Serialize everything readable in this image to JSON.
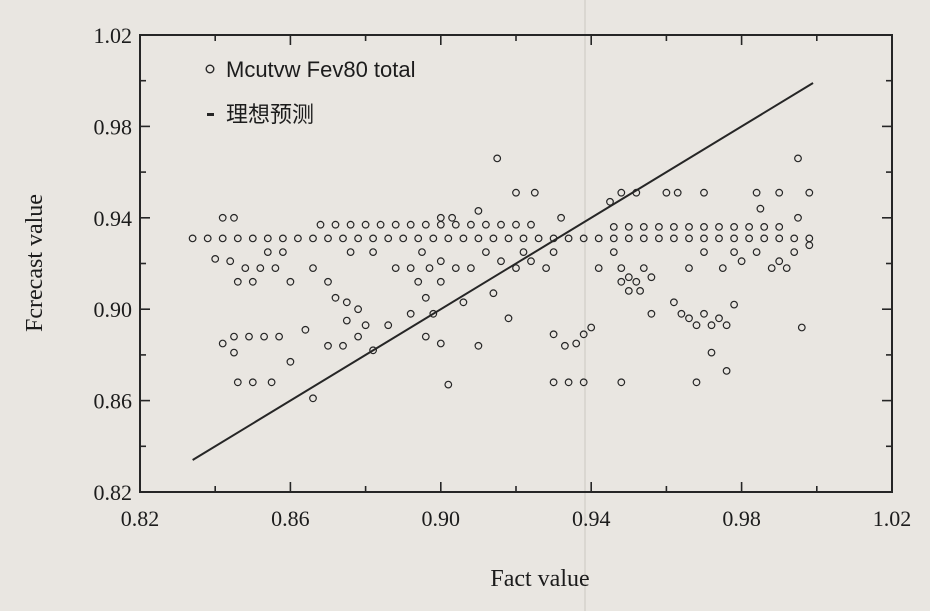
{
  "chart_data": {
    "type": "scatter",
    "xlabel": "Fact value",
    "ylabel": "Fcrecast value",
    "xlim": [
      0.82,
      1.02
    ],
    "ylim": [
      0.82,
      1.02
    ],
    "x_ticks": [
      "0.82",
      "0.86",
      "0.90",
      "0.94",
      "0.98",
      "1.02"
    ],
    "y_ticks": [
      "0.82",
      "0.86",
      "0.90",
      "0.94",
      "0.98",
      "1.02"
    ],
    "legend_position": "top-left",
    "grid": false,
    "colors": {
      "ink": "#262626",
      "background": "#e9e6e1"
    },
    "series": [
      {
        "name": "Mcutvw Fev80 total",
        "marker": "open-circle",
        "points": [
          [
            0.834,
            0.931
          ],
          [
            0.838,
            0.931
          ],
          [
            0.842,
            0.931
          ],
          [
            0.846,
            0.931
          ],
          [
            0.85,
            0.931
          ],
          [
            0.854,
            0.931
          ],
          [
            0.858,
            0.931
          ],
          [
            0.862,
            0.931
          ],
          [
            0.866,
            0.931
          ],
          [
            0.87,
            0.931
          ],
          [
            0.874,
            0.931
          ],
          [
            0.878,
            0.931
          ],
          [
            0.882,
            0.931
          ],
          [
            0.886,
            0.931
          ],
          [
            0.89,
            0.931
          ],
          [
            0.894,
            0.931
          ],
          [
            0.898,
            0.931
          ],
          [
            0.902,
            0.931
          ],
          [
            0.906,
            0.931
          ],
          [
            0.91,
            0.931
          ],
          [
            0.914,
            0.931
          ],
          [
            0.918,
            0.931
          ],
          [
            0.922,
            0.931
          ],
          [
            0.926,
            0.931
          ],
          [
            0.93,
            0.931
          ],
          [
            0.934,
            0.931
          ],
          [
            0.938,
            0.931
          ],
          [
            0.942,
            0.931
          ],
          [
            0.946,
            0.931
          ],
          [
            0.95,
            0.931
          ],
          [
            0.954,
            0.931
          ],
          [
            0.958,
            0.931
          ],
          [
            0.962,
            0.931
          ],
          [
            0.966,
            0.931
          ],
          [
            0.97,
            0.931
          ],
          [
            0.974,
            0.931
          ],
          [
            0.978,
            0.931
          ],
          [
            0.982,
            0.931
          ],
          [
            0.986,
            0.931
          ],
          [
            0.99,
            0.931
          ],
          [
            0.994,
            0.931
          ],
          [
            0.998,
            0.931
          ],
          [
            0.868,
            0.937
          ],
          [
            0.872,
            0.937
          ],
          [
            0.876,
            0.937
          ],
          [
            0.88,
            0.937
          ],
          [
            0.884,
            0.937
          ],
          [
            0.888,
            0.937
          ],
          [
            0.892,
            0.937
          ],
          [
            0.896,
            0.937
          ],
          [
            0.9,
            0.937
          ],
          [
            0.904,
            0.937
          ],
          [
            0.908,
            0.937
          ],
          [
            0.912,
            0.937
          ],
          [
            0.916,
            0.937
          ],
          [
            0.92,
            0.937
          ],
          [
            0.924,
            0.937
          ],
          [
            0.946,
            0.936
          ],
          [
            0.95,
            0.936
          ],
          [
            0.954,
            0.936
          ],
          [
            0.958,
            0.936
          ],
          [
            0.962,
            0.936
          ],
          [
            0.966,
            0.936
          ],
          [
            0.97,
            0.936
          ],
          [
            0.974,
            0.936
          ],
          [
            0.978,
            0.936
          ],
          [
            0.982,
            0.936
          ],
          [
            0.986,
            0.936
          ],
          [
            0.99,
            0.936
          ],
          [
            0.842,
            0.94
          ],
          [
            0.845,
            0.94
          ],
          [
            0.9,
            0.94
          ],
          [
            0.903,
            0.94
          ],
          [
            0.91,
            0.943
          ],
          [
            0.932,
            0.94
          ],
          [
            0.915,
            0.966
          ],
          [
            0.92,
            0.951
          ],
          [
            0.925,
            0.951
          ],
          [
            0.945,
            0.947
          ],
          [
            0.948,
            0.951
          ],
          [
            0.952,
            0.951
          ],
          [
            0.96,
            0.951
          ],
          [
            0.963,
            0.951
          ],
          [
            0.97,
            0.951
          ],
          [
            0.984,
            0.951
          ],
          [
            0.99,
            0.951
          ],
          [
            0.995,
            0.966
          ],
          [
            0.998,
            0.951
          ],
          [
            0.985,
            0.944
          ],
          [
            0.995,
            0.94
          ],
          [
            0.84,
            0.922
          ],
          [
            0.844,
            0.921
          ],
          [
            0.848,
            0.918
          ],
          [
            0.852,
            0.918
          ],
          [
            0.856,
            0.918
          ],
          [
            0.854,
            0.925
          ],
          [
            0.858,
            0.925
          ],
          [
            0.846,
            0.912
          ],
          [
            0.85,
            0.912
          ],
          [
            0.86,
            0.912
          ],
          [
            0.845,
            0.888
          ],
          [
            0.849,
            0.888
          ],
          [
            0.853,
            0.888
          ],
          [
            0.857,
            0.888
          ],
          [
            0.842,
            0.885
          ],
          [
            0.845,
            0.881
          ],
          [
            0.86,
            0.877
          ],
          [
            0.846,
            0.868
          ],
          [
            0.85,
            0.868
          ],
          [
            0.855,
            0.868
          ],
          [
            0.864,
            0.891
          ],
          [
            0.87,
            0.884
          ],
          [
            0.866,
            0.861
          ],
          [
            0.874,
            0.884
          ],
          [
            0.866,
            0.918
          ],
          [
            0.87,
            0.912
          ],
          [
            0.872,
            0.905
          ],
          [
            0.875,
            0.903
          ],
          [
            0.878,
            0.9
          ],
          [
            0.875,
            0.895
          ],
          [
            0.88,
            0.893
          ],
          [
            0.878,
            0.888
          ],
          [
            0.882,
            0.882
          ],
          [
            0.886,
            0.893
          ],
          [
            0.876,
            0.925
          ],
          [
            0.882,
            0.925
          ],
          [
            0.888,
            0.918
          ],
          [
            0.892,
            0.918
          ],
          [
            0.894,
            0.912
          ],
          [
            0.896,
            0.905
          ],
          [
            0.898,
            0.898
          ],
          [
            0.892,
            0.898
          ],
          [
            0.896,
            0.888
          ],
          [
            0.9,
            0.885
          ],
          [
            0.895,
            0.925
          ],
          [
            0.9,
            0.921
          ],
          [
            0.904,
            0.918
          ],
          [
            0.897,
            0.918
          ],
          [
            0.908,
            0.918
          ],
          [
            0.9,
            0.912
          ],
          [
            0.906,
            0.903
          ],
          [
            0.912,
            0.925
          ],
          [
            0.916,
            0.921
          ],
          [
            0.92,
            0.918
          ],
          [
            0.924,
            0.921
          ],
          [
            0.91,
            0.884
          ],
          [
            0.902,
            0.867
          ],
          [
            0.918,
            0.896
          ],
          [
            0.914,
            0.907
          ],
          [
            0.922,
            0.925
          ],
          [
            0.928,
            0.918
          ],
          [
            0.93,
            0.925
          ],
          [
            0.93,
            0.889
          ],
          [
            0.933,
            0.884
          ],
          [
            0.936,
            0.885
          ],
          [
            0.938,
            0.889
          ],
          [
            0.94,
            0.892
          ],
          [
            0.93,
            0.868
          ],
          [
            0.934,
            0.868
          ],
          [
            0.938,
            0.868
          ],
          [
            0.942,
            0.918
          ],
          [
            0.946,
            0.925
          ],
          [
            0.948,
            0.918
          ],
          [
            0.95,
            0.914
          ],
          [
            0.952,
            0.912
          ],
          [
            0.954,
            0.918
          ],
          [
            0.956,
            0.914
          ],
          [
            0.948,
            0.912
          ],
          [
            0.95,
            0.908
          ],
          [
            0.953,
            0.908
          ],
          [
            0.956,
            0.898
          ],
          [
            0.948,
            0.868
          ],
          [
            0.962,
            0.903
          ],
          [
            0.964,
            0.898
          ],
          [
            0.966,
            0.896
          ],
          [
            0.968,
            0.893
          ],
          [
            0.97,
            0.898
          ],
          [
            0.972,
            0.893
          ],
          [
            0.974,
            0.896
          ],
          [
            0.976,
            0.893
          ],
          [
            0.978,
            0.902
          ],
          [
            0.966,
            0.918
          ],
          [
            0.97,
            0.925
          ],
          [
            0.975,
            0.918
          ],
          [
            0.978,
            0.925
          ],
          [
            0.968,
            0.868
          ],
          [
            0.972,
            0.881
          ],
          [
            0.976,
            0.873
          ],
          [
            0.98,
            0.921
          ],
          [
            0.984,
            0.925
          ],
          [
            0.988,
            0.918
          ],
          [
            0.99,
            0.921
          ],
          [
            0.994,
            0.925
          ],
          [
            0.992,
            0.918
          ],
          [
            0.996,
            0.892
          ],
          [
            0.998,
            0.928
          ]
        ]
      },
      {
        "name": "理想预测",
        "marker": "line",
        "points": [
          [
            0.834,
            0.834
          ],
          [
            0.999,
            0.999
          ]
        ]
      }
    ]
  }
}
